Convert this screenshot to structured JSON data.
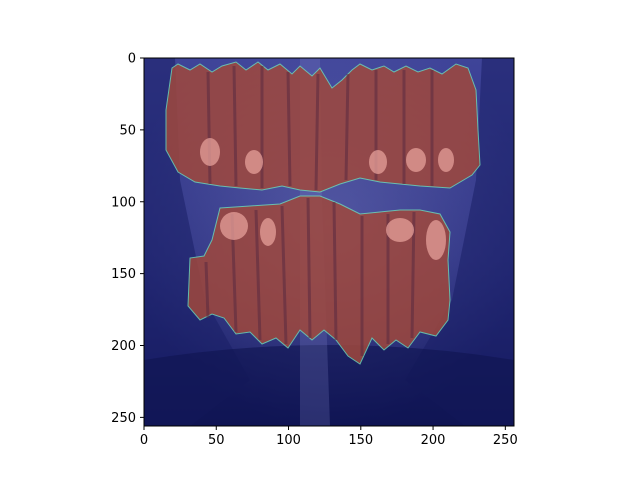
{
  "figure": {
    "type": "image",
    "xlim": [
      0,
      256
    ],
    "ylim": [
      256,
      0
    ],
    "xticks": [
      0,
      50,
      100,
      150,
      200,
      250
    ],
    "yticks": [
      0,
      50,
      100,
      150,
      200,
      250
    ],
    "xtick_labels": [
      "0",
      "50",
      "100",
      "150",
      "200",
      "250"
    ],
    "ytick_labels": [
      "0",
      "50",
      "100",
      "150",
      "200",
      "250"
    ]
  },
  "colors": {
    "background_scan": "#2a2f7a",
    "segmentation": "#a0483c",
    "highlight": "#e6a09a",
    "edge": "#6fd3b4"
  }
}
